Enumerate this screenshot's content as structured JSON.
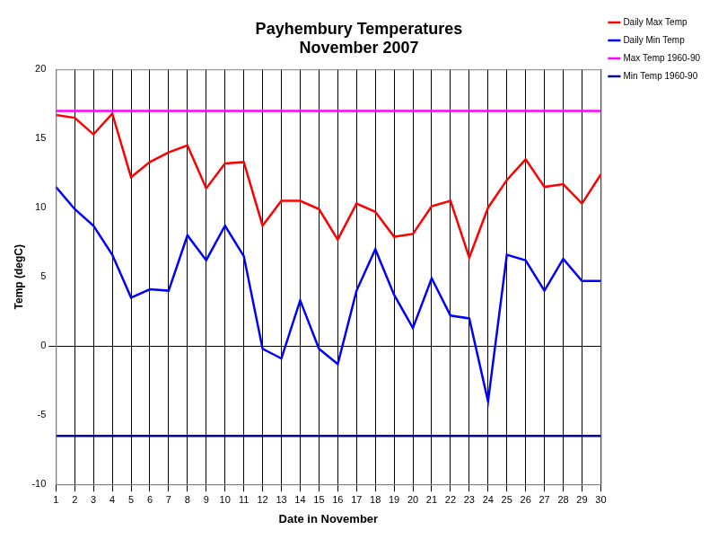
{
  "chart_data": {
    "type": "line",
    "title": [
      "Payhembury Temperatures",
      "November 2007"
    ],
    "x_label": "Date in November",
    "y_label": "Temp (degC)",
    "categories": [
      "1",
      "2",
      "3",
      "4",
      "5",
      "6",
      "7",
      "8",
      "9",
      "10",
      "11",
      "12",
      "13",
      "14",
      "15",
      "16",
      "17",
      "18",
      "19",
      "20",
      "21",
      "22",
      "23",
      "24",
      "25",
      "26",
      "27",
      "28",
      "29",
      "30"
    ],
    "series": [
      {
        "name": "Daily Max Temp",
        "color": "#ff0000",
        "values": [
          16.7,
          16.5,
          15.3,
          16.8,
          12.2,
          13.3,
          14.0,
          14.5,
          11.4,
          13.2,
          13.3,
          8.7,
          10.5,
          10.5,
          9.9,
          7.7,
          10.3,
          9.7,
          7.9,
          8.1,
          10.1,
          10.5,
          6.4,
          10.0,
          12.0,
          13.5,
          11.5,
          11.7,
          10.3,
          12.4
        ]
      },
      {
        "name": "Daily Min Temp",
        "color": "#0000ff",
        "values": [
          11.5,
          9.9,
          8.7,
          6.6,
          3.5,
          4.1,
          4.0,
          8.0,
          6.2,
          8.7,
          6.5,
          -0.2,
          -0.9,
          3.3,
          -0.2,
          -1.3,
          4.0,
          7.0,
          3.7,
          1.3,
          4.9,
          2.2,
          2.0,
          -4.0,
          6.6,
          6.2,
          4.0,
          6.3,
          4.7,
          4.7
        ]
      },
      {
        "name": "Max Temp 1960-90",
        "color": "#ff00ff",
        "values": [
          17,
          17,
          17,
          17,
          17,
          17,
          17,
          17,
          17,
          17,
          17,
          17,
          17,
          17,
          17,
          17,
          17,
          17,
          17,
          17,
          17,
          17,
          17,
          17,
          17,
          17,
          17,
          17,
          17,
          17
        ]
      },
      {
        "name": "Min Temp 1960-90",
        "color": "#000080",
        "values": [
          -6.5,
          -6.5,
          -6.5,
          -6.5,
          -6.5,
          -6.5,
          -6.5,
          -6.5,
          -6.5,
          -6.5,
          -6.5,
          -6.5,
          -6.5,
          -6.5,
          -6.5,
          -6.5,
          -6.5,
          -6.5,
          -6.5,
          -6.5,
          -6.5,
          -6.5,
          -6.5,
          -6.5,
          -6.5,
          -6.5,
          -6.5,
          -6.5,
          -6.5,
          -6.5
        ]
      }
    ],
    "ylim": [
      -10,
      20
    ],
    "yticks": [
      -10,
      -5,
      0,
      5,
      10,
      15,
      20
    ],
    "grid": true,
    "legend": "upper right"
  }
}
